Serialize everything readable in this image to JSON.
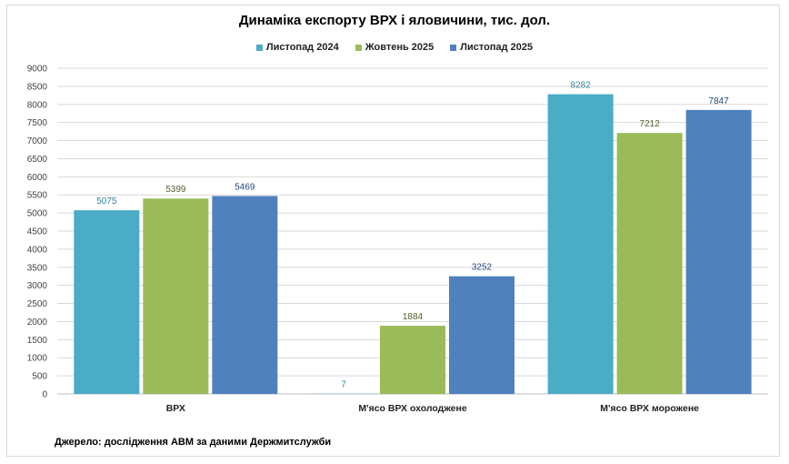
{
  "chart_data": {
    "type": "bar",
    "title": "Динаміка експорту ВРХ і яловичини, тис. дол.",
    "categories": [
      "ВРХ",
      "М'ясо ВРХ охолоджене",
      "М'ясо ВРХ морожене"
    ],
    "series": [
      {
        "name": "Листопад 2024",
        "values": [
          5075,
          7,
          8282
        ],
        "color": "#4BACC6",
        "label_color": "#31849B"
      },
      {
        "name": "Жовтень 2025",
        "values": [
          5399,
          1884,
          7212
        ],
        "color": "#9BBB59",
        "label_color": "#4F6228"
      },
      {
        "name": "Листопад 2025",
        "values": [
          5469,
          3252,
          7847
        ],
        "color": "#4F81BD",
        "label_color": "#1F497D"
      }
    ],
    "yticks": [
      0,
      500,
      1000,
      1500,
      2000,
      2500,
      3000,
      3500,
      4000,
      4500,
      5000,
      5500,
      6000,
      6500,
      7000,
      7500,
      8000,
      8500,
      9000
    ],
    "ylim": [
      0,
      9000
    ],
    "grid": true,
    "legend_position": "top",
    "xlabel": "",
    "ylabel": ""
  },
  "source": "Джерело: дослідження АВМ за даними Держмитслужби"
}
